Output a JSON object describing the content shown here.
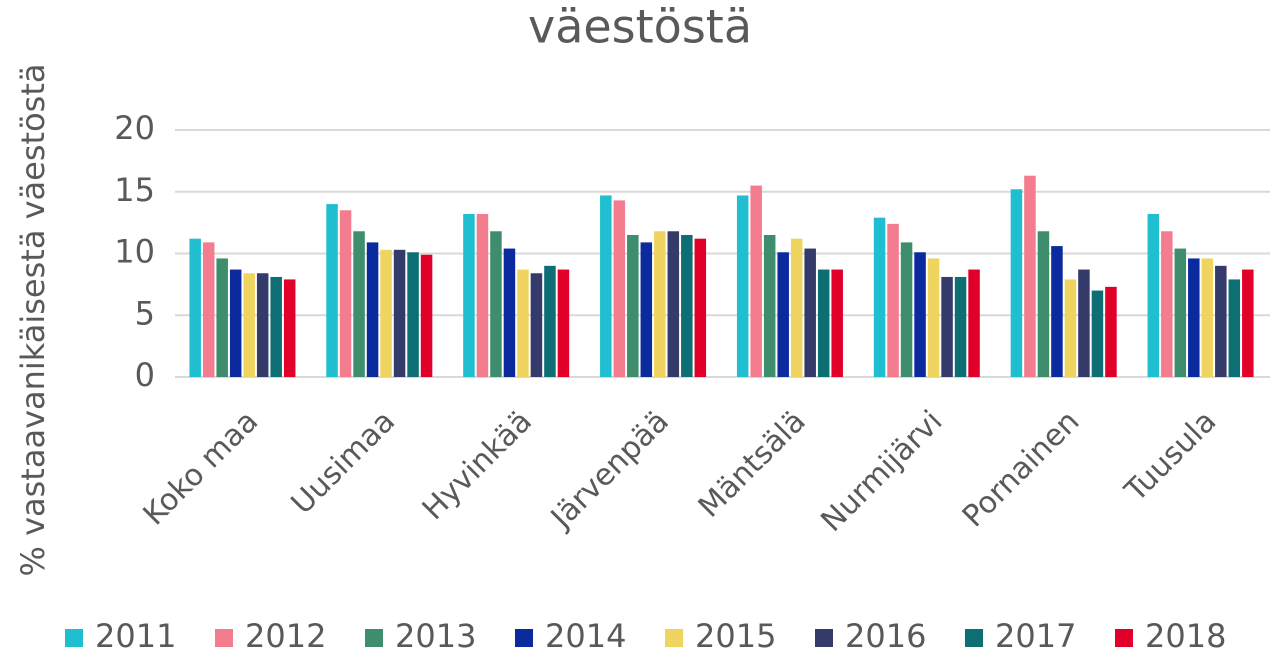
{
  "chart_data": {
    "type": "bar",
    "title": "väestöstä",
    "y_label": "% vastaavanikäisestä väestöstä",
    "categories": [
      "Koko maa",
      "Uusimaa",
      "Hyvinkää",
      "Järvenpää",
      "Mäntsälä",
      "Nurmijärvi",
      "Pornainen",
      "Tuusula"
    ],
    "series": [
      {
        "name": "2011",
        "color": "#1fbfcf",
        "values": [
          11.2,
          14.0,
          13.2,
          14.7,
          14.7,
          12.9,
          15.2,
          13.2
        ]
      },
      {
        "name": "2012",
        "color": "#f47c8f",
        "values": [
          10.9,
          13.5,
          13.2,
          14.3,
          15.5,
          12.4,
          16.3,
          11.8
        ]
      },
      {
        "name": "2013",
        "color": "#3e8e6e",
        "values": [
          9.6,
          11.8,
          11.8,
          11.5,
          11.5,
          10.9,
          11.8,
          10.4
        ]
      },
      {
        "name": "2014",
        "color": "#0a2a9e",
        "values": [
          8.7,
          10.9,
          10.4,
          10.9,
          10.1,
          10.1,
          10.6,
          9.6
        ]
      },
      {
        "name": "2015",
        "color": "#f0d460",
        "values": [
          8.4,
          10.3,
          8.7,
          11.8,
          11.2,
          9.6,
          7.9,
          9.6
        ]
      },
      {
        "name": "2016",
        "color": "#343a6a",
        "values": [
          8.4,
          10.3,
          8.4,
          11.8,
          10.4,
          8.1,
          8.7,
          9.0
        ]
      },
      {
        "name": "2017",
        "color": "#0d6e74",
        "values": [
          8.1,
          10.1,
          9.0,
          11.5,
          8.7,
          8.1,
          7.0,
          7.9
        ]
      },
      {
        "name": "2018",
        "color": "#e0002a",
        "values": [
          7.9,
          9.9,
          8.7,
          11.2,
          8.7,
          8.7,
          7.3,
          8.7
        ]
      }
    ],
    "ylim": [
      0,
      20
    ],
    "yticks": [
      0,
      5,
      10,
      15,
      20
    ],
    "grid": true,
    "legend": "bottom"
  }
}
